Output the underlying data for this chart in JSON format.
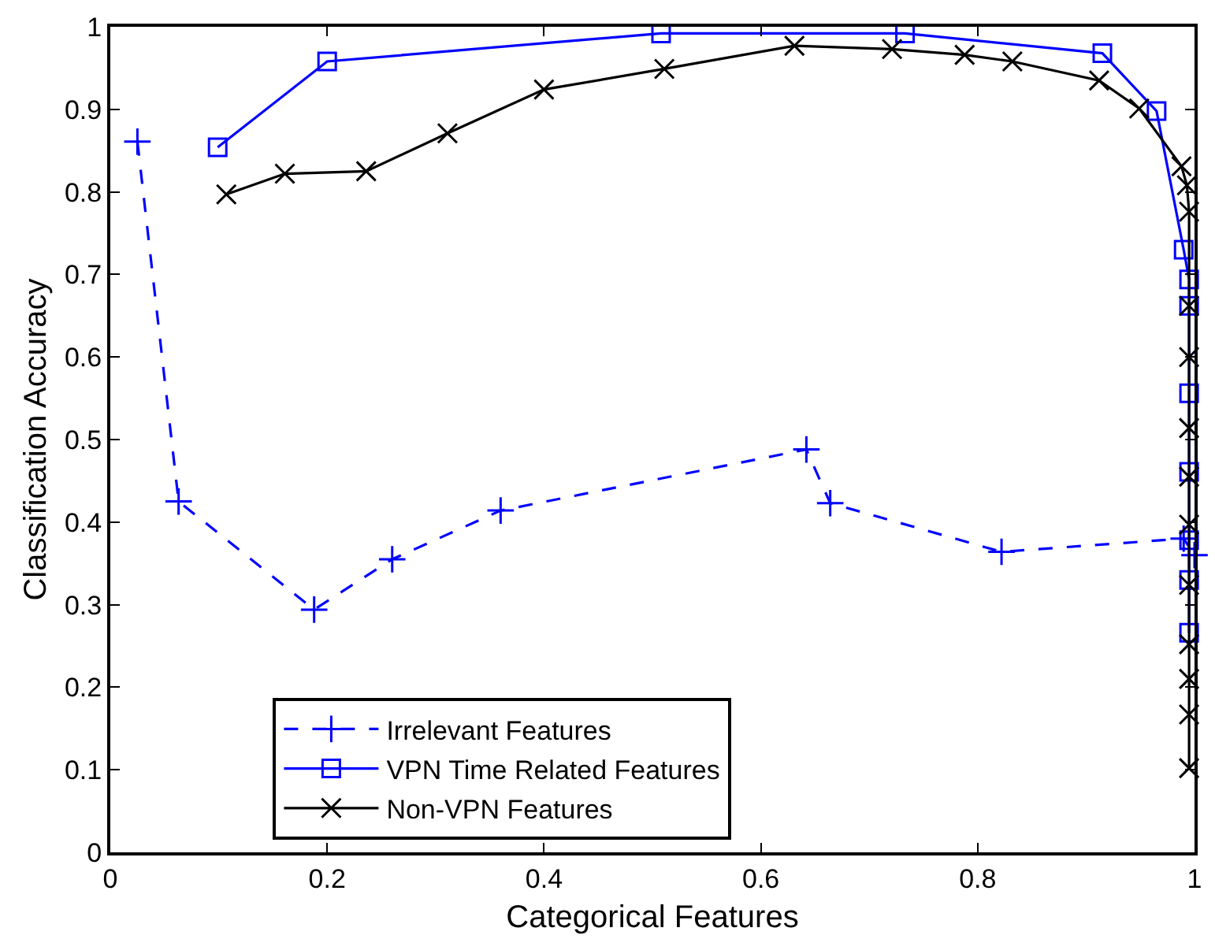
{
  "chart_data": {
    "type": "line",
    "xlabel": "Categorical Features",
    "ylabel": "Classification Accuracy",
    "xlim": [
      0,
      1
    ],
    "ylim": [
      0,
      1
    ],
    "xticks": [
      0,
      0.2,
      0.4,
      0.6,
      0.8,
      1
    ],
    "yticks": [
      0,
      0.1,
      0.2,
      0.3,
      0.4,
      0.5,
      0.6,
      0.7,
      0.8,
      0.9,
      1
    ],
    "legend": "bottom",
    "series": [
      {
        "name": "Irrelevant Features",
        "color": "#0000ff",
        "marker": "cross",
        "line_style": "dashed",
        "x": [
          0.025,
          0.063,
          0.188,
          0.26,
          0.36,
          0.642,
          0.664,
          0.822,
          0.99,
          1
        ],
        "values": [
          0.861,
          0.425,
          0.294,
          0.355,
          0.414,
          0.488,
          0.423,
          0.364,
          0.38,
          0.36
        ]
      },
      {
        "name": "VPN Time Related Features",
        "color": "#0000ff",
        "marker": "square",
        "line_style": "solid",
        "x": [
          0.099,
          0.2,
          0.508,
          0.733,
          0.915,
          0.965,
          0.99,
          0.995,
          0.995,
          0.995,
          0.995,
          0.995,
          0.995,
          0.995
        ],
        "values": [
          0.854,
          0.958,
          0.992,
          0.992,
          0.968,
          0.898,
          0.73,
          0.694,
          0.662,
          0.556,
          0.461,
          0.378,
          0.33,
          0.266
        ]
      },
      {
        "name": "Non-VPN Features",
        "color": "#000000",
        "marker": "x",
        "line_style": "solid",
        "x": [
          0.107,
          0.161,
          0.236,
          0.311,
          0.4,
          0.511,
          0.631,
          0.721,
          0.788,
          0.832,
          0.912,
          0.949,
          0.988,
          0.993,
          0.995,
          0.995,
          0.995,
          0.995,
          0.995,
          0.995,
          0.995,
          0.995,
          0.995,
          0.995,
          0.995
        ],
        "values": [
          0.797,
          0.822,
          0.825,
          0.871,
          0.924,
          0.949,
          0.977,
          0.973,
          0.966,
          0.958,
          0.935,
          0.901,
          0.831,
          0.808,
          0.776,
          0.662,
          0.6,
          0.514,
          0.455,
          0.397,
          0.324,
          0.252,
          0.21,
          0.167,
          0.102
        ]
      }
    ]
  }
}
